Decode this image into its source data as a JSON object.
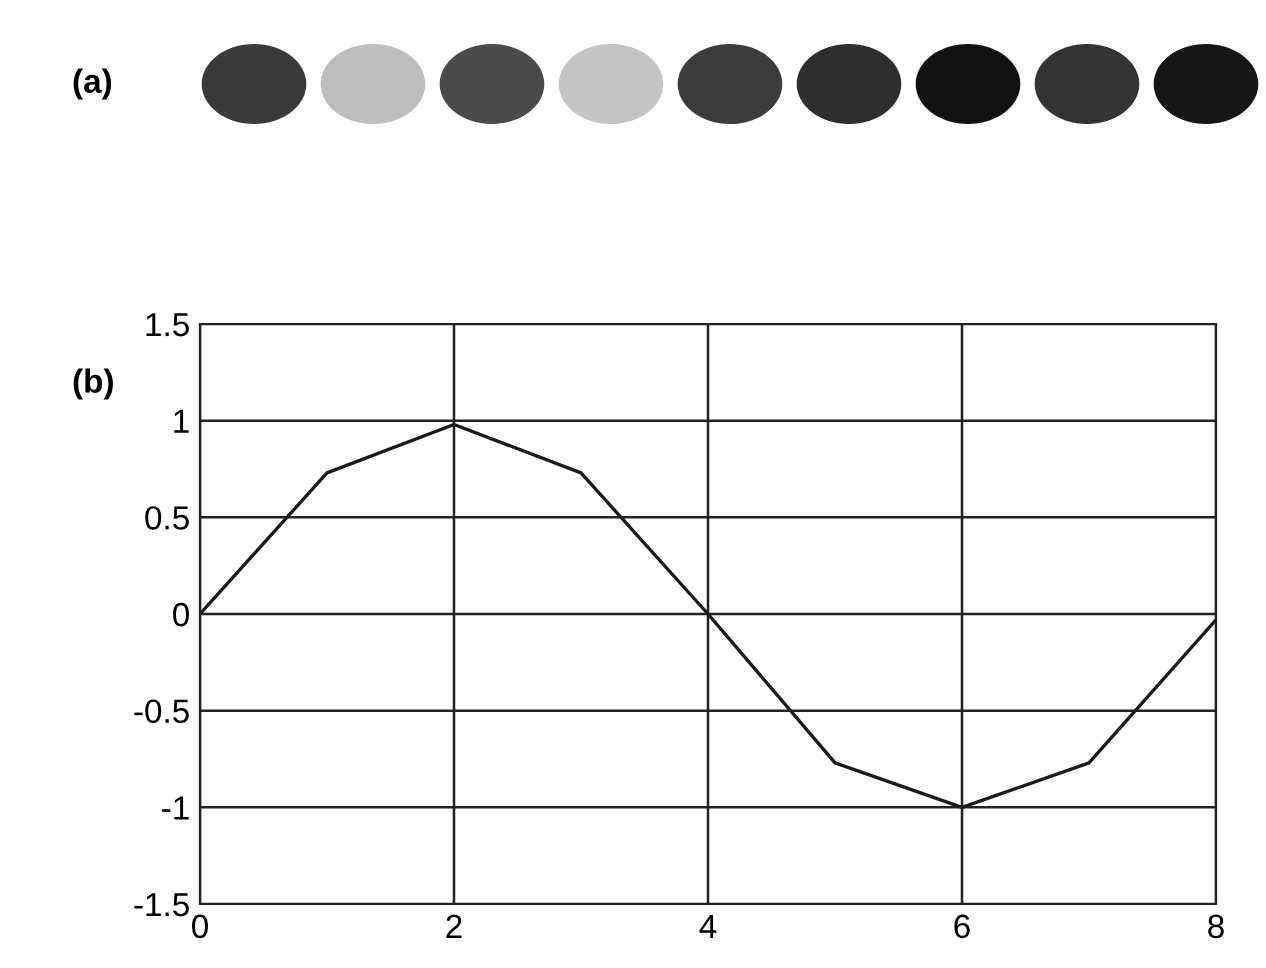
{
  "chart_data": {
    "type": "line",
    "x": [
      0,
      1,
      2,
      3,
      4,
      5,
      6,
      7,
      8
    ],
    "series": [
      {
        "color": "#1a1a1a",
        "values": [
          0,
          0.73,
          0.98,
          0.73,
          0,
          -0.77,
          -1,
          -0.77,
          -0.03
        ]
      }
    ],
    "xlim": [
      0,
      8
    ],
    "ylim": [
      -1.5,
      1.5
    ],
    "xticks": [
      0,
      2,
      4,
      6,
      8
    ],
    "yticks": [
      -1.5,
      -1,
      -0.5,
      0,
      0.5,
      1,
      1.5
    ],
    "grid": true,
    "annotations": [
      "(a)",
      "(b)"
    ]
  }
}
